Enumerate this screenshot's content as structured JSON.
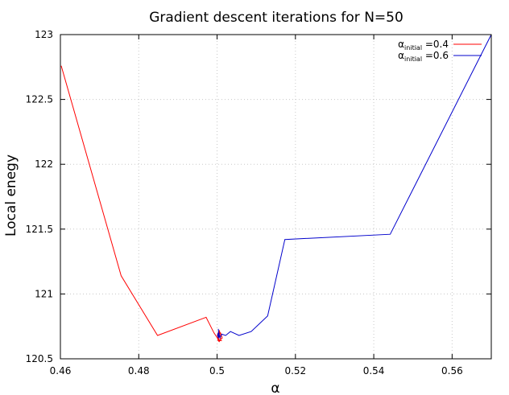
{
  "chart_data": {
    "type": "line",
    "title": "Gradient descent iterations for N=50",
    "xlabel": "α",
    "ylabel": "Local enegy",
    "xlim": [
      0.46,
      0.57
    ],
    "ylim": [
      120.5,
      123
    ],
    "xticks": [
      0.46,
      0.48,
      0.5,
      0.52,
      0.54,
      0.56
    ],
    "xtick_labels": [
      "0.46",
      "0.48",
      "0.5",
      "0.52",
      "0.54",
      "0.56"
    ],
    "yticks": [
      120.5,
      121,
      121.5,
      122,
      122.5,
      123
    ],
    "ytick_labels": [
      "120.5",
      "121",
      "121.5",
      "122",
      "122.5",
      "123"
    ],
    "grid": true,
    "legend_position": "top-right",
    "series": [
      {
        "legend_main": "α",
        "legend_sub": "initial",
        "legend_rest": " =0.4",
        "color": "#ff0000",
        "x": [
          0.4602,
          0.4755,
          0.4848,
          0.4972,
          0.4992,
          0.5001,
          0.5003,
          0.5006,
          0.5009,
          0.5013,
          0.5009,
          0.5004,
          0.5001,
          0.5006,
          0.5003,
          0.5012,
          0.5002
        ],
        "y": [
          122.76,
          121.14,
          120.68,
          120.82,
          120.7,
          120.66,
          120.64,
          120.72,
          120.65,
          120.66,
          120.7,
          120.71,
          120.68,
          120.63,
          120.64,
          120.64,
          120.65
        ]
      },
      {
        "legend_main": "α",
        "legend_sub": "initial",
        "legend_rest": " =0.6",
        "color": "#0000cc",
        "x": [
          0.57,
          0.5442,
          0.5173,
          0.5129,
          0.5087,
          0.5056,
          0.5034,
          0.5022,
          0.5012,
          0.5007,
          0.5003,
          0.5006,
          0.5002,
          0.5004,
          0.5001,
          0.5003
        ],
        "y": [
          123.0,
          121.46,
          121.42,
          120.83,
          120.71,
          120.68,
          120.71,
          120.68,
          120.69,
          120.66,
          120.73,
          120.67,
          120.7,
          120.66,
          120.68,
          120.68
        ]
      }
    ]
  }
}
